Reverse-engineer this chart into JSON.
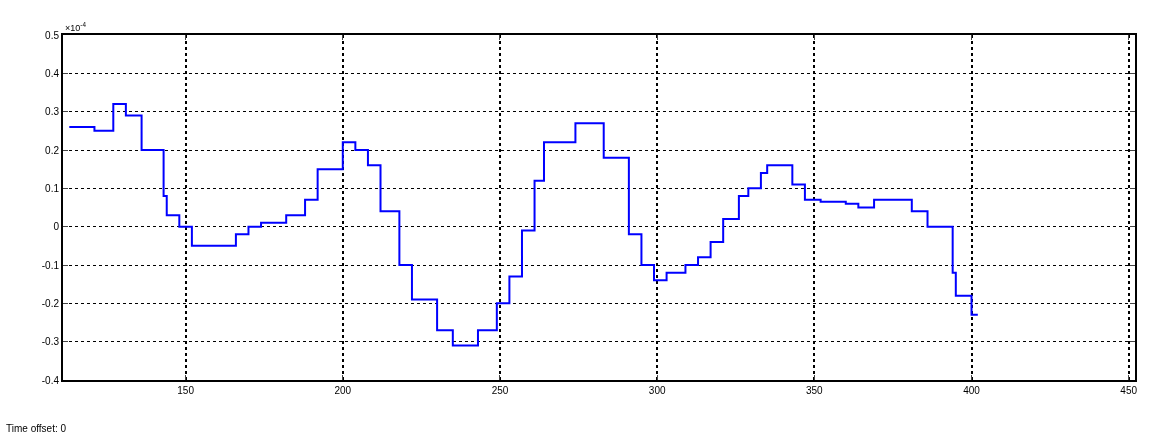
{
  "chart_data": {
    "type": "step",
    "x": [
      113,
      121,
      127,
      131,
      136,
      143,
      144,
      148,
      152,
      166,
      170,
      174,
      182,
      188,
      192,
      200,
      204,
      208,
      212,
      218,
      222,
      230,
      235,
      243,
      249,
      253,
      257,
      261,
      264,
      274,
      283,
      291,
      295,
      299,
      303,
      309,
      313,
      317,
      321,
      326,
      329,
      333,
      335,
      343,
      347,
      352,
      360,
      364,
      369,
      381,
      386,
      394,
      395,
      400,
      402
    ],
    "series": [
      {
        "color": "#0000ff",
        "values": [
          0.26,
          0.25,
          0.32,
          0.29,
          0.2,
          0.08,
          0.03,
          0.0,
          -0.05,
          -0.02,
          0.0,
          0.01,
          0.03,
          0.07,
          0.15,
          0.22,
          0.2,
          0.16,
          0.04,
          -0.1,
          -0.19,
          -0.27,
          -0.31,
          -0.27,
          -0.2,
          -0.13,
          -0.01,
          0.12,
          0.22,
          0.27,
          0.18,
          -0.02,
          -0.1,
          -0.14,
          -0.12,
          -0.1,
          -0.08,
          -0.04,
          0.02,
          0.08,
          0.1,
          0.14,
          0.16,
          0.11,
          0.07,
          0.065,
          0.06,
          0.05,
          0.07,
          0.04,
          0.0,
          -0.12,
          -0.18,
          -0.23,
          -0.23
        ]
      }
    ],
    "xlim": [
      111,
      452
    ],
    "xticks": [
      150,
      200,
      250,
      300,
      350,
      400,
      450
    ],
    "ylim": [
      -0.4,
      0.5
    ],
    "yticks": [
      -0.4,
      -0.3,
      -0.2,
      -0.1,
      0,
      0.1,
      0.2,
      0.3,
      0.4,
      0.5
    ],
    "grid": true,
    "marker": "none",
    "line_style": "solid",
    "annotations": [
      "×10$^{-4}$",
      "Time offset: 0"
    ]
  }
}
